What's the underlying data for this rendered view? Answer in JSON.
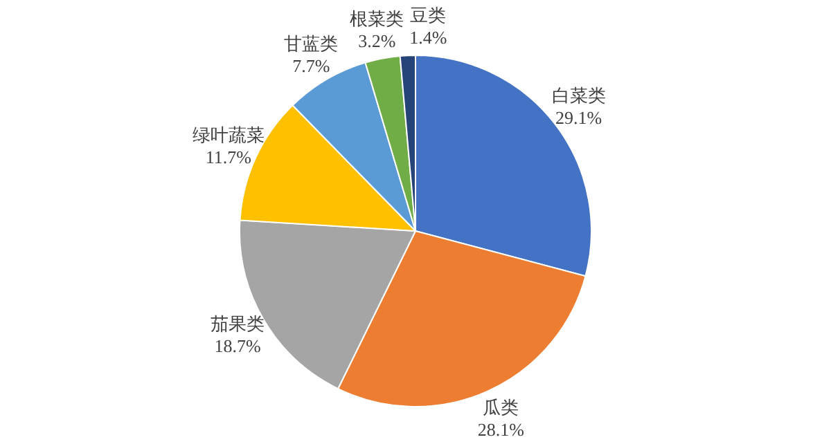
{
  "chart_data": {
    "type": "pie",
    "categories": [
      "白菜类",
      "瓜类",
      "茄果类",
      "绿叶蔬菜",
      "甘蓝类",
      "根菜类",
      "豆类"
    ],
    "values": [
      29.1,
      28.1,
      18.7,
      11.7,
      7.7,
      3.2,
      1.4
    ],
    "value_labels": [
      "29.1%",
      "28.1%",
      "18.7%",
      "11.7%",
      "7.7%",
      "3.2%",
      "1.4%"
    ],
    "colors": [
      "#4472c4",
      "#ed7d31",
      "#a5a5a5",
      "#ffc000",
      "#5b9bd5",
      "#70ad47",
      "#264478"
    ]
  }
}
